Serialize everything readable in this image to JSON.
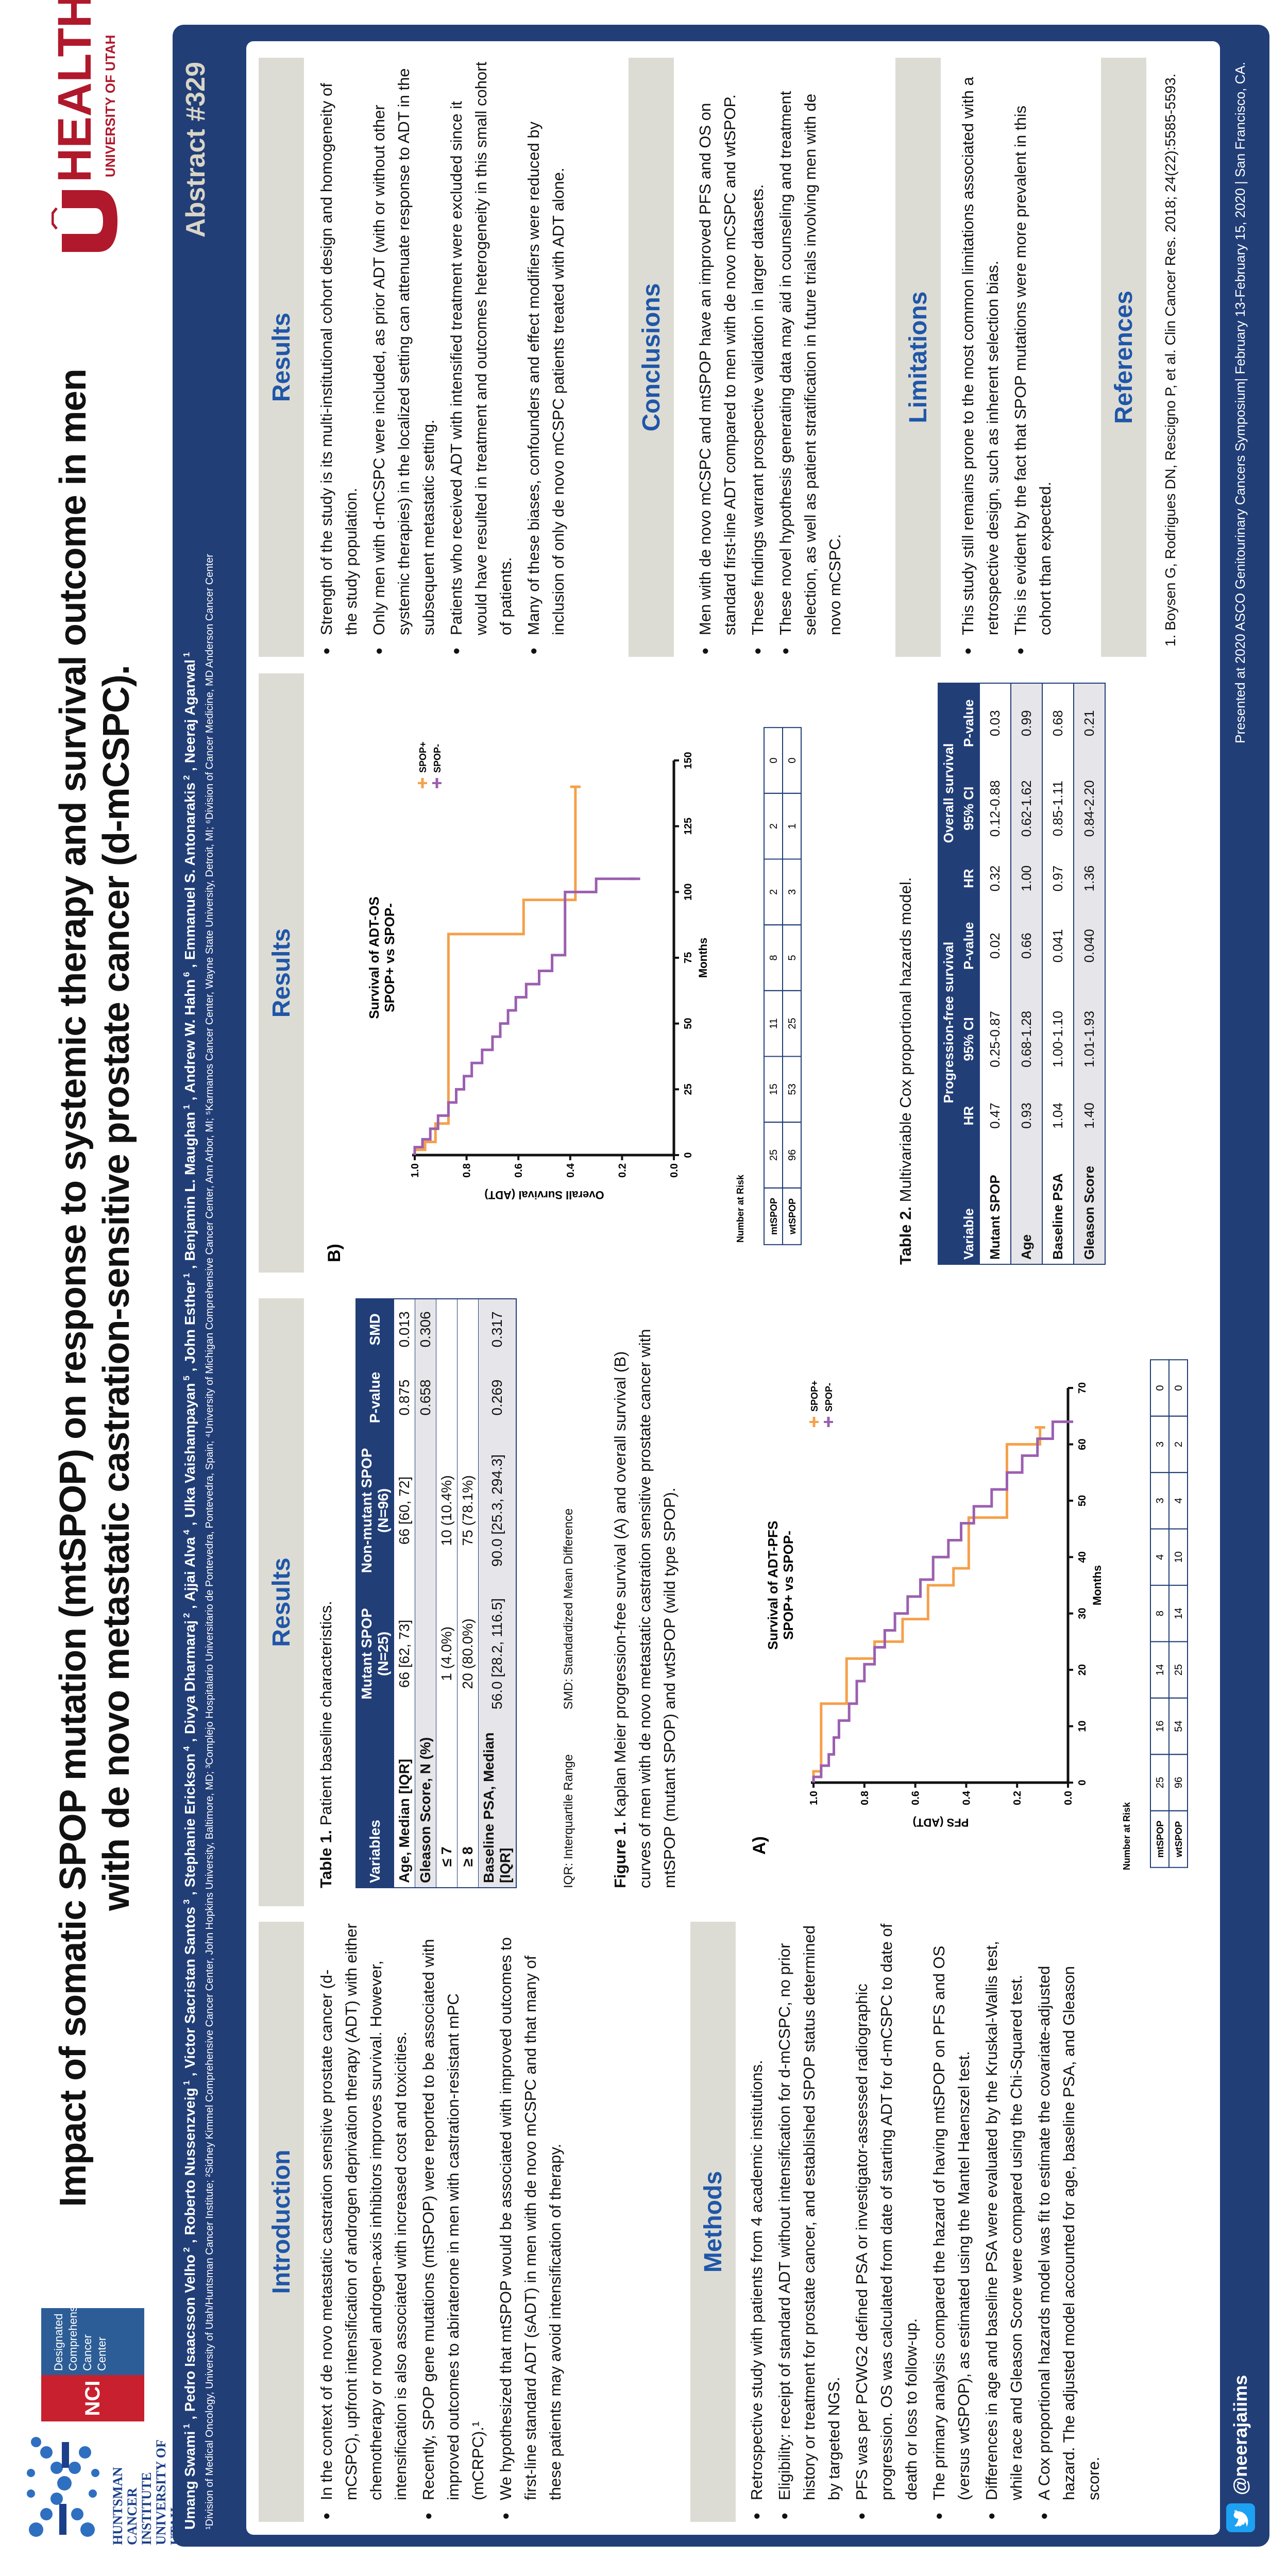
{
  "title": {
    "line1": "Impact of somatic SPOP mutation (mtSPOP) on response to systemic therapy and survival outcome in men",
    "line2": "with de novo metastatic castration-sensitive prostate cancer (d-mCSPC)."
  },
  "logos": {
    "huntsman": "HUNTSMAN CANCER INSTITUTE UNIVERSITY OF UTAH",
    "nci": "NCI",
    "nci_sub": "Designated Comprehensive Cancer Center",
    "uhealth": "HEALTH",
    "uhealth_sub": "UNIVERSITY OF UTAH"
  },
  "authors": [
    {
      "name": "Umang Swami",
      "sup": "1"
    },
    {
      "name": "Pedro Isaacsson Velho",
      "sup": "2"
    },
    {
      "name": "Roberto Nussenzveig",
      "sup": "1"
    },
    {
      "name": "Victor Sacristan Santos",
      "sup": "3"
    },
    {
      "name": "Stephanie Erickson",
      "sup": "4"
    },
    {
      "name": "Divya Dharmaraj",
      "sup": "2"
    },
    {
      "name": "Ajjai Alva",
      "sup": "4"
    },
    {
      "name": "Ulka Vaishampayan",
      "sup": "5"
    },
    {
      "name": "John Esther",
      "sup": "1"
    },
    {
      "name": "Benjamin L. Maughan",
      "sup": "1"
    },
    {
      "name": "Andrew W. Hahn",
      "sup": "6"
    },
    {
      "name": "Emmanuel S. Antonarakis",
      "sup": "2"
    },
    {
      "name": "Neeraj Agarwal",
      "sup": "1"
    }
  ],
  "affiliations": "¹Division of Medical Oncology, University of Utah/Huntsman Cancer Institute; ²Sidney Kimmel Comprehensive Cancer Center, John Hopkins University, Baltimore, MD; ³Complejo Hospitalario Universitario de Pontevedra, Pontevedra, Spain; ⁴University of Michigan Comprehensive Cancer Center, Ann Arbor, MI; ⁵Karmanos Cancer Center, Wayne State University, Detroit, MI; ⁶Division of Cancer Medicine, MD Anderson Cancer Center",
  "abstract_id": "Abstract #329",
  "introduction": {
    "heading": "Introduction",
    "bullets": [
      "In the context of de novo metastatic castration sensitive prostate cancer (d-mCSPC), upfront intensification of androgen deprivation therapy (ADT) with either chemotherapy or novel androgen-axis inhibitors improves survival. However, intensification is also associated with increased cost and toxicities.",
      "Recently, SPOP gene mutations (mtSPOP) were reported to be associated with improved outcomes to abiraterone in men with castration-resistant mPC (mCRPC).¹",
      "We hypothesized that mtSPOP would be associated with improved outcomes to first-line standard ADT (sADT) in men with de novo mCSPC and that many of these patients may avoid intensification of therapy."
    ]
  },
  "methods": {
    "heading": "Methods",
    "bullets": [
      "Retrospective study with patients from 4 academic institutions.",
      "Eligibility: receipt of standard ADT without intensification for d-mCSPC, no prior history or treatment for prostate cancer, and established SPOP status determined by targeted NGS.",
      "PFS was per PCWG2 defined PSA or investigator-assessed radiographic progression. OS was calculated from date of starting ADT for d-mCSPC to date of death or loss to follow-up.",
      "The primary analysis compared the hazard of having mtSPOP on PFS and OS (versus wtSPOP), as estimated using the Mantel Haenszel test.",
      "Differences in age and baseline PSA were evaluated by the Kruskal-Wallis test, while race and Gleason Score were compared using the Chi-Squared test.",
      "A Cox proportional hazards model was fit to estimate the covariate-adjusted hazard. The adjusted model accounted for age, baseline PSA, and Gleason score."
    ]
  },
  "results_heading": "Results",
  "table1": {
    "title_bold": "Table 1.",
    "title": " Patient baseline characteristics.",
    "headers": [
      "Variables",
      "Mutant SPOP (N=25)",
      "Non-mutant SPOP (N=96)",
      "P-value",
      "SMD"
    ],
    "rows": [
      [
        "Age, Median [IQR]",
        "66 [62, 73]",
        "66 [60, 72]",
        "0.875",
        "0.013"
      ],
      [
        "Gleason Score, N (%)",
        "",
        "",
        "0.658",
        "0.306"
      ],
      [
        "≤ 7",
        "1 (4.0%)",
        "10 (10.4%)",
        "",
        ""
      ],
      [
        "≥ 8",
        "20 (80.0%)",
        "75 (78.1%)",
        "",
        ""
      ],
      [
        "Baseline PSA, Median [IQR]",
        "56.0 [28.2, 116.5]",
        "90.0 [25.3, 294.3]",
        "0.269",
        "0.317"
      ]
    ],
    "note_iqr": "IQR: Interquartile Range",
    "note_smd": "SMD: Standardized Mean Difference"
  },
  "figure1": {
    "label": "Figure 1.",
    "caption": " Kaplan Meier progression-free survival (A) and overall survival (B) curves of men with de novo metastatic castration sensitive prostate cancer with mtSPOP (mutant SPOP) and wtSPOP (wild type SPOP)."
  },
  "chart_data": [
    {
      "type": "line",
      "panel": "A)",
      "title": [
        "Survival of ADT-PFS",
        "SPOP+ vs SPOP-"
      ],
      "xlabel": "Months",
      "ylabel": "PFS (ADT)",
      "xlim": [
        0,
        70
      ],
      "xticks": [
        0,
        10,
        20,
        30,
        40,
        50,
        60,
        70
      ],
      "ylim": [
        0,
        1
      ],
      "yticks": [
        "0.0",
        "0.2",
        "0.4",
        "0.6",
        "0.8",
        "1.0"
      ],
      "grid": false,
      "legend": "top-right",
      "series": [
        {
          "name": "SPOP+",
          "color": "#f5a04a",
          "points": [
            [
              0,
              1
            ],
            [
              2,
              0.97
            ],
            [
              14,
              0.87
            ],
            [
              22,
              0.76
            ],
            [
              25,
              0.65
            ],
            [
              29,
              0.55
            ],
            [
              35,
              0.45
            ],
            [
              38,
              0.39
            ],
            [
              47,
              0.24
            ],
            [
              60,
              0.11
            ],
            [
              63,
              0.11
            ]
          ]
        },
        {
          "name": "SPOP-",
          "color": "#9b5fb0",
          "points": [
            [
              0,
              1
            ],
            [
              1,
              0.97
            ],
            [
              3,
              0.94
            ],
            [
              5,
              0.92
            ],
            [
              8,
              0.9
            ],
            [
              11,
              0.86
            ],
            [
              14,
              0.83
            ],
            [
              18,
              0.8
            ],
            [
              21,
              0.76
            ],
            [
              24,
              0.72
            ],
            [
              27,
              0.68
            ],
            [
              30,
              0.63
            ],
            [
              33,
              0.58
            ],
            [
              36,
              0.53
            ],
            [
              40,
              0.47
            ],
            [
              43,
              0.42
            ],
            [
              46,
              0.37
            ],
            [
              49,
              0.3
            ],
            [
              52,
              0.24
            ],
            [
              55,
              0.18
            ],
            [
              58,
              0.12
            ],
            [
              61,
              0.06
            ],
            [
              64,
              0
            ]
          ]
        }
      ],
      "risk": {
        "label": "Number at Risk",
        "rows": [
          {
            "name": "mtSPOP",
            "values": [
              25,
              16,
              14,
              8,
              4,
              3,
              3,
              0
            ]
          },
          {
            "name": "wtSPOP",
            "values": [
              96,
              54,
              25,
              14,
              10,
              4,
              2,
              0
            ]
          }
        ]
      }
    },
    {
      "type": "line",
      "panel": "B)",
      "title": [
        "Survival of ADT-OS",
        "SPOP+ vs SPOP-"
      ],
      "xlabel": "Months",
      "ylabel": "Overall Survival (ADT)",
      "xlim": [
        0,
        150
      ],
      "xticks": [
        0,
        25,
        50,
        75,
        100,
        125,
        150
      ],
      "ylim": [
        0,
        1
      ],
      "yticks": [
        "0.0",
        "0.2",
        "0.4",
        "0.6",
        "0.8",
        "1.0"
      ],
      "grid": false,
      "legend": "top-right",
      "series": [
        {
          "name": "SPOP+",
          "color": "#f5a04a",
          "points": [
            [
              0,
              1
            ],
            [
              2,
              0.96
            ],
            [
              5,
              0.92
            ],
            [
              12,
              0.87
            ],
            [
              84,
              0.58
            ],
            [
              97,
              0.38
            ],
            [
              140,
              0.38
            ]
          ]
        },
        {
          "name": "SPOP-",
          "color": "#9b5fb0",
          "points": [
            [
              0,
              1
            ],
            [
              3,
              0.97
            ],
            [
              6,
              0.94
            ],
            [
              10,
              0.91
            ],
            [
              15,
              0.87
            ],
            [
              20,
              0.84
            ],
            [
              25,
              0.81
            ],
            [
              30,
              0.78
            ],
            [
              35,
              0.74
            ],
            [
              40,
              0.7
            ],
            [
              45,
              0.67
            ],
            [
              50,
              0.64
            ],
            [
              55,
              0.61
            ],
            [
              60,
              0.57
            ],
            [
              65,
              0.52
            ],
            [
              70,
              0.47
            ],
            [
              76,
              0.42
            ],
            [
              100,
              0.3
            ],
            [
              105,
              0.15
            ]
          ]
        }
      ],
      "risk": {
        "label": "Number at Risk",
        "rows": [
          {
            "name": "mtSPOP",
            "values": [
              25,
              15,
              11,
              8,
              2,
              2,
              0
            ]
          },
          {
            "name": "wtSPOP",
            "values": [
              96,
              53,
              25,
              5,
              3,
              1,
              0
            ]
          }
        ]
      }
    }
  ],
  "table2": {
    "title_bold": "Table 2.",
    "title": " Multivariable Cox proportional hazards model.",
    "group_headers": [
      "Variable",
      "Progression-free survival",
      "Overall survival"
    ],
    "sub_headers": [
      "HR",
      "95% CI",
      "P-value",
      "HR",
      "95% CI",
      "P-value"
    ],
    "rows": [
      [
        "Mutant SPOP",
        "0.47",
        "0.25-0.87",
        "0.02",
        "0.32",
        "0.12-0.88",
        "0.03"
      ],
      [
        "Age",
        "0.93",
        "0.68-1.28",
        "0.66",
        "1.00",
        "0.62-1.62",
        "0.99"
      ],
      [
        "Baseline PSA",
        "1.04",
        "1.00-1.10",
        "0.041",
        "0.97",
        "0.85-1.11",
        "0.68"
      ],
      [
        "Gleason Score",
        "1.40",
        "1.01-1.93",
        "0.040",
        "1.36",
        "0.84-2.20",
        "0.21"
      ]
    ]
  },
  "results2": {
    "bullets": [
      "Strength of the study is its multi-institutional cohort design and homogeneity of the study population.",
      "Only men with d-mCSPC were included, as prior ADT (with or without other systemic therapies) in the localized setting can attenuate response to ADT in the subsequent metastatic setting.",
      "Patients who received ADT with intensified treatment were excluded since it would have resulted in treatment and outcomes heterogeneity in this small cohort of patients.",
      "Many of these biases, confounders and effect modifiers were reduced by inclusion of only de novo mCSPC patients treated with ADT alone."
    ]
  },
  "conclusions": {
    "heading": "Conclusions",
    "bullets": [
      "Men with de novo mCSPC and mtSPOP have an improved PFS and OS on standard first-line ADT compared to men with de novo mCSPC and wtSPOP.",
      "These findings warrant prospective validation in larger datasets.",
      "These novel hypothesis generating data may aid in counseling and treatment selection, as well as patient stratification in future trials involving men with de novo mCSPC."
    ]
  },
  "limitations": {
    "heading": "Limitations",
    "bullets": [
      "This study still remains prone to the most common limitations associated with a retrospective design, such as inherent selection bias.",
      "This is evident by the fact that SPOP mutations were more prevalent in this cohort than expected."
    ]
  },
  "references": {
    "heading": "References",
    "items": [
      "1.   Boysen G, Rodrigues DN, Rescigno P, et al. Clin Cancer Res. 2018; 24(22):5585-5593."
    ]
  },
  "footer": {
    "twitter_icon": "twitter-bird-icon",
    "handle": "@neerajaiims",
    "presented": "Presented at 2020 ASCO Genitourinary Cancers Symposium| February 13-February 15, 2020 | San Francisco, CA."
  },
  "colors": {
    "brand_blue": "#213e77",
    "header_text": "#1f56a8",
    "header_bg": "#dddcd4",
    "utah_red": "#b0182b",
    "spop_pos": "#f5a04a",
    "spop_neg": "#9b5fb0"
  }
}
